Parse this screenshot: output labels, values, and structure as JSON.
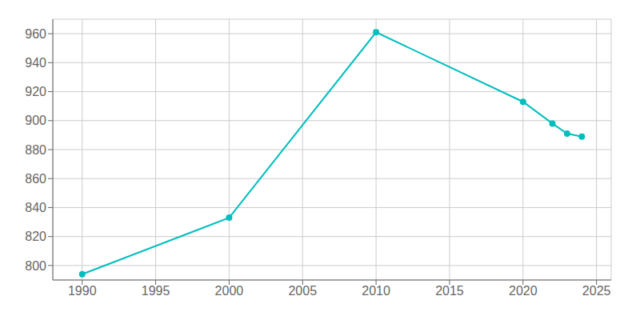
{
  "chart_data": {
    "type": "line",
    "x": [
      1990,
      2000,
      2010,
      2020,
      2022,
      2023,
      2024
    ],
    "values": [
      794,
      833,
      961,
      913,
      898,
      891,
      889
    ],
    "color": "#00BEBE",
    "marker": "circle",
    "xlim": [
      1988,
      2026
    ],
    "ylim": [
      790,
      970
    ],
    "xticks": [
      1990,
      1995,
      2000,
      2005,
      2010,
      2015,
      2020,
      2025
    ],
    "yticks": [
      800,
      820,
      840,
      860,
      880,
      900,
      920,
      940,
      960
    ],
    "grid": true
  }
}
